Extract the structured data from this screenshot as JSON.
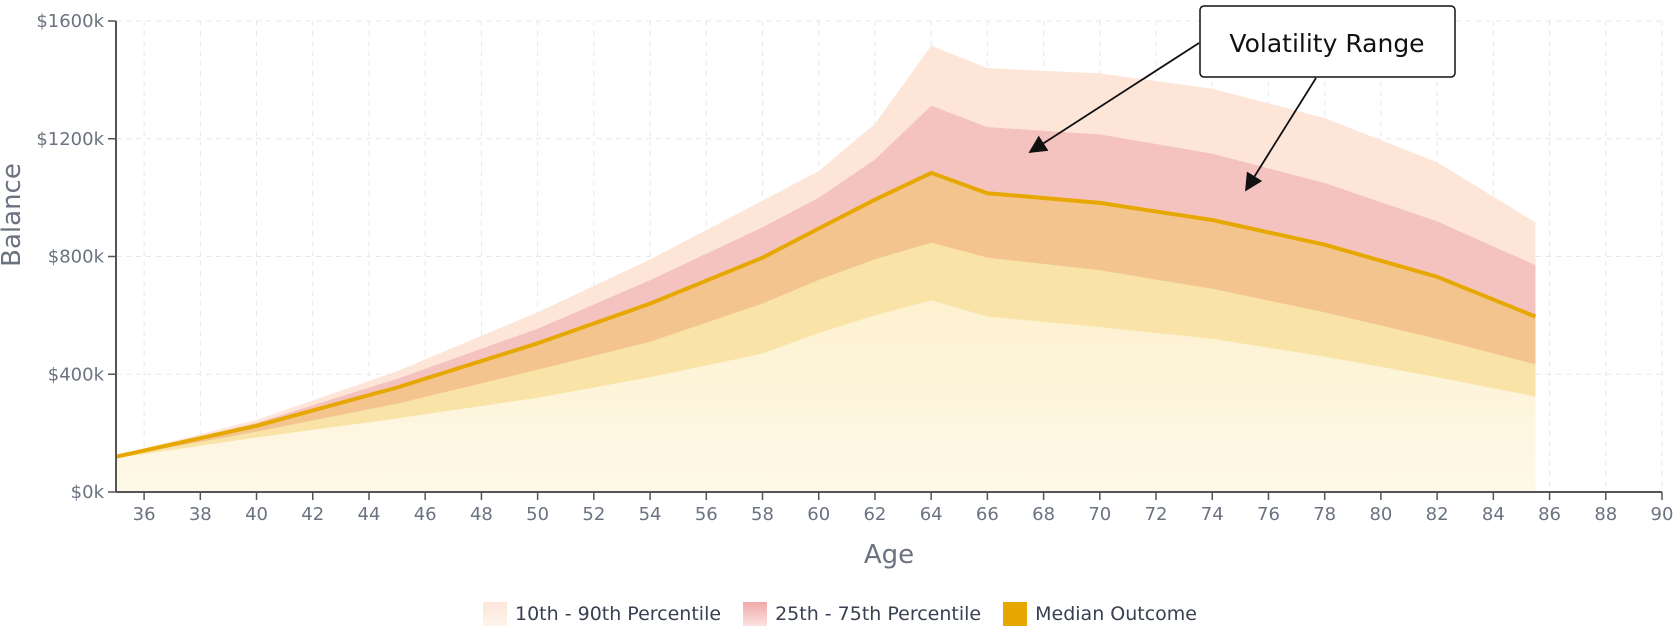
{
  "chart_data": {
    "type": "area",
    "title": "",
    "xlabel": "Age",
    "ylabel": "Balance",
    "xlim": [
      35,
      90
    ],
    "ylim": [
      0,
      1600
    ],
    "x_ticks": [
      36,
      38,
      40,
      42,
      44,
      46,
      48,
      50,
      52,
      54,
      56,
      58,
      60,
      62,
      64,
      66,
      68,
      70,
      72,
      74,
      76,
      78,
      80,
      82,
      84,
      86,
      88,
      90
    ],
    "y_ticks": [
      0,
      400,
      800,
      1200,
      1600
    ],
    "y_tick_labels": [
      "$0k",
      "$400k",
      "$800k",
      "$1200k",
      "$1600k"
    ],
    "grid": true,
    "x": [
      35,
      40,
      45,
      50,
      54,
      58,
      60,
      62,
      64,
      66,
      70,
      74,
      78,
      82,
      85.5
    ],
    "series": [
      {
        "name": "p10",
        "values": [
          115,
          185,
          250,
          320,
          390,
          470,
          540,
          600,
          651,
          596,
          560,
          520,
          460,
          390,
          324
        ]
      },
      {
        "name": "p25",
        "values": [
          118,
          205,
          300,
          415,
          510,
          640,
          720,
          790,
          847,
          796,
          753,
          690,
          610,
          520,
          433
        ]
      },
      {
        "name": "Median Outcome",
        "values": [
          120,
          225,
          355,
          505,
          640,
          796,
          895,
          993,
          1084,
          1015,
          982,
          924,
          840,
          731,
          596
        ]
      },
      {
        "name": "p75",
        "values": [
          122,
          235,
          385,
          555,
          720,
          900,
          1000,
          1130,
          1313,
          1240,
          1215,
          1150,
          1050,
          920,
          771
        ]
      },
      {
        "name": "p90",
        "values": [
          124,
          245,
          410,
          610,
          790,
          990,
          1090,
          1250,
          1516,
          1440,
          1422,
          1370,
          1270,
          1120,
          916
        ]
      }
    ],
    "legend": [
      "10th - 90th Percentile",
      "25th - 75th Percentile",
      "Median Outcome"
    ],
    "legend_placement": "bottom-center",
    "annotation": "Volatility Range",
    "colors": {
      "band90": "#fde6d8",
      "band75": "#f5c3bf",
      "band_low": "#f3c48e",
      "band10": "#f9e3a6",
      "base": "#fdf1cf",
      "median": "#e6a800"
    }
  }
}
